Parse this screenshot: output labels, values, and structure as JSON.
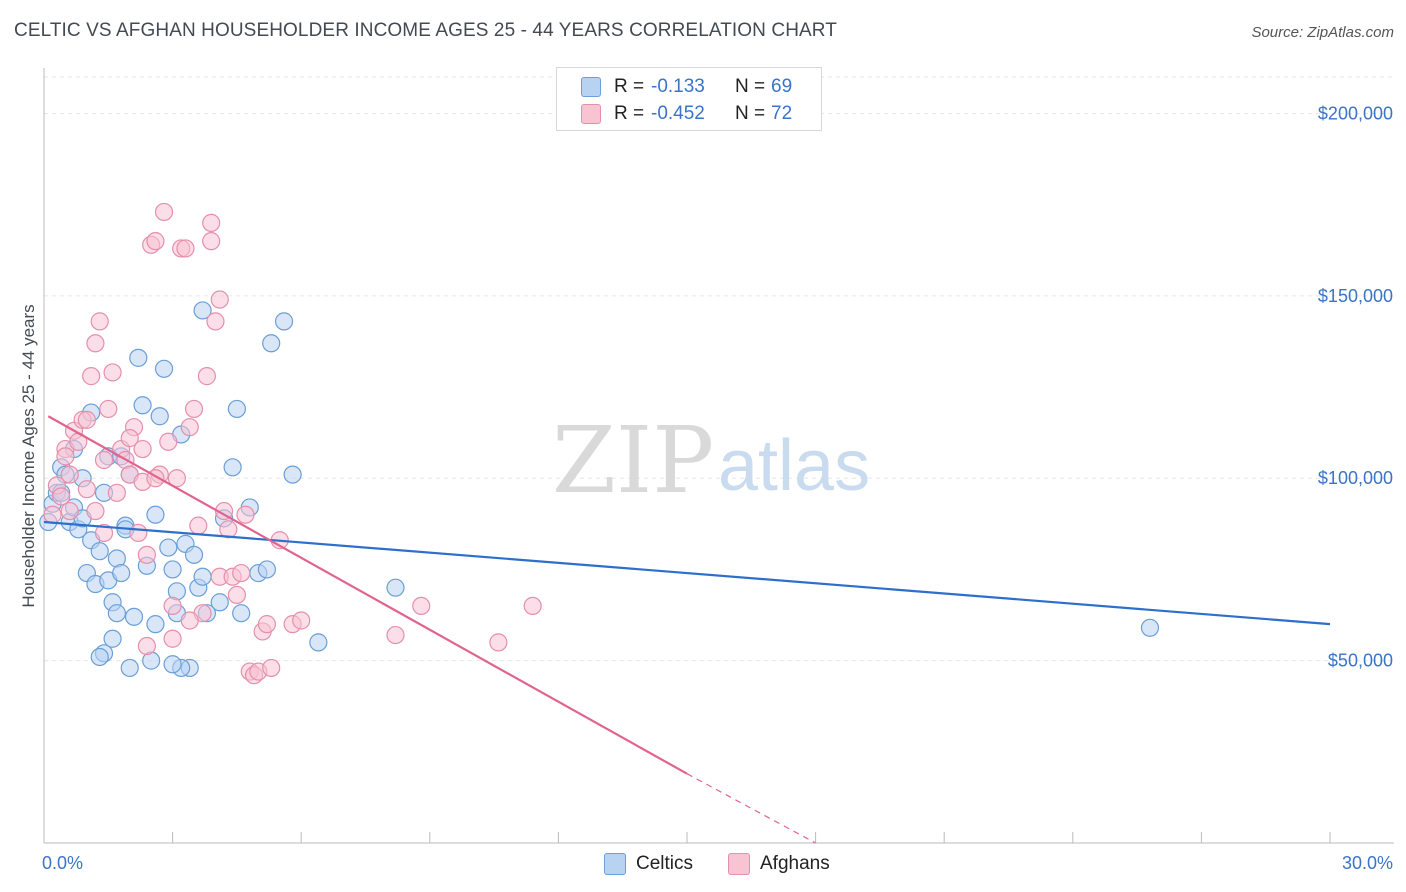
{
  "header": {
    "title": "CELTIC VS AFGHAN HOUSEHOLDER INCOME AGES 25 - 44 YEARS CORRELATION CHART",
    "source": "Source: ZipAtlas.com"
  },
  "legend": {
    "rows": [
      {
        "r_label": "R =",
        "r_value": "-0.133",
        "n_label": "N =",
        "n_value": "69"
      },
      {
        "r_label": "R =",
        "r_value": "-0.452",
        "n_label": "N =",
        "n_value": "72"
      }
    ]
  },
  "bottom_legend": {
    "celtics": "Celtics",
    "afghans": "Afghans"
  },
  "watermark": {
    "zip": "ZIP",
    "atlas": "atlas"
  },
  "colors": {
    "celtics_fill": "#b8d2f2",
    "celtics_stroke": "#6a9fd8",
    "celtics_line": "#2d6fcc",
    "afghans_fill": "#f8c3d3",
    "afghans_stroke": "#e68fab",
    "afghans_line": "#e0648f",
    "tick_text": "#3a74c8",
    "grid": "#e6e6e6"
  },
  "chart_data": {
    "type": "scatter",
    "title": "CELTIC VS AFGHAN HOUSEHOLDER INCOME AGES 25 - 44 YEARS CORRELATION CHART",
    "xlabel": "",
    "ylabel": "Householder Income Ages 25 - 44 years",
    "xlim": [
      0,
      30
    ],
    "ylim": [
      0,
      210000
    ],
    "x_tick_labels": [
      "0.0%",
      "30.0%"
    ],
    "y_ticks": [
      50000,
      100000,
      150000,
      200000
    ],
    "y_tick_labels": [
      "$50,000",
      "$100,000",
      "$150,000",
      "$200,000"
    ],
    "grid": true,
    "legend_position": "top-center",
    "series": [
      {
        "name": "Celtics",
        "r": -0.133,
        "n": 69,
        "trend": {
          "x": [
            0,
            30
          ],
          "y": [
            88000,
            60000
          ]
        },
        "points": [
          [
            0.1,
            88000
          ],
          [
            0.2,
            93000
          ],
          [
            0.3,
            96000
          ],
          [
            0.4,
            103000
          ],
          [
            0.5,
            101000
          ],
          [
            0.6,
            88000
          ],
          [
            0.7,
            92000
          ],
          [
            0.8,
            86000
          ],
          [
            0.9,
            100000
          ],
          [
            1.0,
            74000
          ],
          [
            1.1,
            83000
          ],
          [
            1.2,
            71000
          ],
          [
            1.3,
            80000
          ],
          [
            1.4,
            96000
          ],
          [
            1.5,
            106000
          ],
          [
            1.4,
            52000
          ],
          [
            1.3,
            51000
          ],
          [
            1.5,
            72000
          ],
          [
            1.6,
            66000
          ],
          [
            1.7,
            78000
          ],
          [
            1.8,
            74000
          ],
          [
            1.9,
            87000
          ],
          [
            2.0,
            101000
          ],
          [
            2.1,
            62000
          ],
          [
            2.2,
            133000
          ],
          [
            2.3,
            120000
          ],
          [
            2.4,
            76000
          ],
          [
            2.5,
            50000
          ],
          [
            2.7,
            117000
          ],
          [
            2.8,
            130000
          ],
          [
            2.9,
            81000
          ],
          [
            3.0,
            75000
          ],
          [
            3.1,
            69000
          ],
          [
            3.2,
            112000
          ],
          [
            3.3,
            82000
          ],
          [
            3.4,
            48000
          ],
          [
            3.5,
            79000
          ],
          [
            3.6,
            70000
          ],
          [
            3.7,
            73000
          ],
          [
            3.8,
            63000
          ],
          [
            3.2,
            48000
          ],
          [
            2.0,
            48000
          ],
          [
            2.6,
            60000
          ],
          [
            3.0,
            49000
          ],
          [
            1.6,
            56000
          ],
          [
            3.1,
            63000
          ],
          [
            3.7,
            146000
          ],
          [
            4.1,
            66000
          ],
          [
            4.2,
            89000
          ],
          [
            4.4,
            103000
          ],
          [
            4.5,
            119000
          ],
          [
            4.6,
            63000
          ],
          [
            4.8,
            92000
          ],
          [
            5.0,
            74000
          ],
          [
            5.2,
            75000
          ],
          [
            5.3,
            137000
          ],
          [
            5.6,
            143000
          ],
          [
            5.8,
            101000
          ],
          [
            6.4,
            55000
          ],
          [
            8.2,
            70000
          ],
          [
            25.8,
            59000
          ],
          [
            0.7,
            108000
          ],
          [
            1.8,
            106000
          ],
          [
            2.6,
            90000
          ],
          [
            0.4,
            96000
          ],
          [
            0.9,
            89000
          ],
          [
            1.1,
            118000
          ],
          [
            1.7,
            63000
          ],
          [
            1.9,
            86000
          ]
        ]
      },
      {
        "name": "Afghans",
        "r": -0.452,
        "n": 72,
        "trend": {
          "x": [
            0.1,
            15
          ],
          "y": [
            117000,
            19000
          ],
          "dashed_to": {
            "x": 18,
            "y": 0
          }
        },
        "points": [
          [
            0.2,
            90000
          ],
          [
            0.3,
            98000
          ],
          [
            0.4,
            95000
          ],
          [
            0.5,
            108000
          ],
          [
            0.6,
            101000
          ],
          [
            0.7,
            113000
          ],
          [
            0.8,
            110000
          ],
          [
            0.9,
            116000
          ],
          [
            1.0,
            97000
          ],
          [
            1.1,
            128000
          ],
          [
            1.2,
            137000
          ],
          [
            1.3,
            143000
          ],
          [
            1.4,
            105000
          ],
          [
            1.5,
            119000
          ],
          [
            1.6,
            129000
          ],
          [
            1.7,
            96000
          ],
          [
            1.8,
            108000
          ],
          [
            1.9,
            105000
          ],
          [
            2.0,
            101000
          ],
          [
            2.1,
            114000
          ],
          [
            2.2,
            85000
          ],
          [
            2.3,
            99000
          ],
          [
            2.4,
            79000
          ],
          [
            2.5,
            164000
          ],
          [
            2.6,
            165000
          ],
          [
            2.7,
            101000
          ],
          [
            2.8,
            173000
          ],
          [
            2.9,
            110000
          ],
          [
            3.0,
            65000
          ],
          [
            3.1,
            100000
          ],
          [
            3.2,
            163000
          ],
          [
            3.3,
            163000
          ],
          [
            3.4,
            114000
          ],
          [
            3.5,
            119000
          ],
          [
            3.6,
            87000
          ],
          [
            3.7,
            63000
          ],
          [
            3.8,
            128000
          ],
          [
            3.9,
            165000
          ],
          [
            4.0,
            143000
          ],
          [
            4.1,
            73000
          ],
          [
            4.2,
            91000
          ],
          [
            4.3,
            86000
          ],
          [
            4.4,
            73000
          ],
          [
            4.5,
            68000
          ],
          [
            4.6,
            74000
          ],
          [
            4.7,
            90000
          ],
          [
            4.8,
            47000
          ],
          [
            4.9,
            46000
          ],
          [
            5.0,
            47000
          ],
          [
            5.1,
            58000
          ],
          [
            5.2,
            60000
          ],
          [
            5.3,
            48000
          ],
          [
            5.5,
            83000
          ],
          [
            5.8,
            60000
          ],
          [
            6.0,
            61000
          ],
          [
            8.2,
            57000
          ],
          [
            8.8,
            65000
          ],
          [
            10.6,
            55000
          ],
          [
            11.4,
            65000
          ],
          [
            2.4,
            54000
          ],
          [
            3.0,
            56000
          ],
          [
            1.4,
            85000
          ],
          [
            0.6,
            91000
          ],
          [
            0.5,
            106000
          ],
          [
            1.0,
            116000
          ],
          [
            1.2,
            91000
          ],
          [
            2.0,
            111000
          ],
          [
            3.4,
            61000
          ],
          [
            3.9,
            170000
          ],
          [
            4.1,
            149000
          ],
          [
            2.6,
            100000
          ],
          [
            2.3,
            108000
          ]
        ]
      }
    ]
  }
}
